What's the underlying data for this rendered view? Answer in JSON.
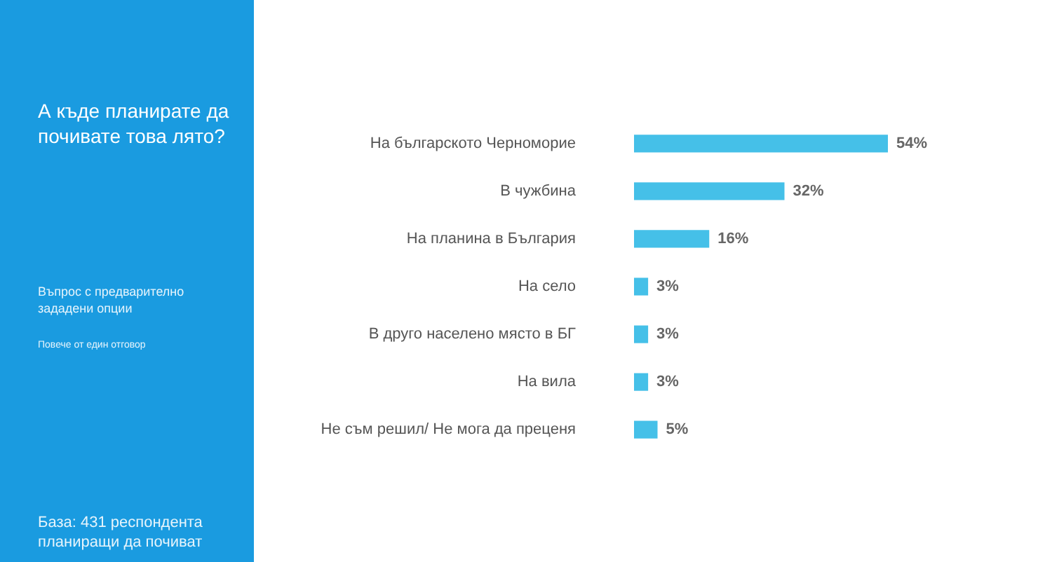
{
  "chart_data": {
    "type": "bar",
    "orientation": "horizontal",
    "title": "А къде планирате да почивате това лято?",
    "annotations": [
      "Въпрос с предварително зададени опции",
      "Повече от един отговор",
      "База: 431 респондента планиращи  да почиват"
    ],
    "categories": [
      "На българското Черноморие",
      "В чужбина",
      "На планина в България",
      "На село",
      "В друго населено място в БГ",
      "На вила",
      "Не съм решил/ Не мога да преценя"
    ],
    "values": [
      54,
      32,
      16,
      3,
      3,
      3,
      5
    ],
    "value_labels": [
      "54%",
      "32%",
      "16%",
      "3%",
      "3%",
      "3%",
      "5%"
    ],
    "color": "#45c0e8"
  }
}
